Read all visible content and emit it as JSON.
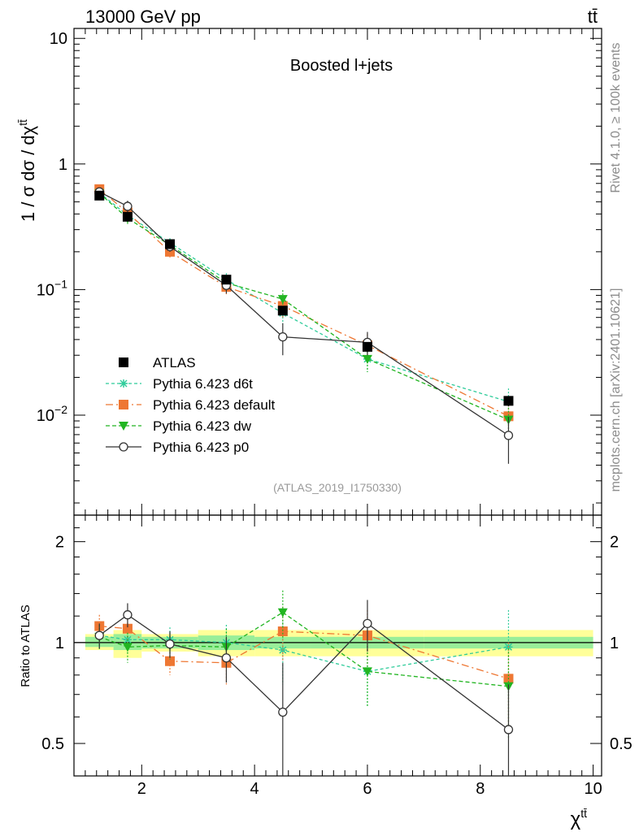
{
  "header": {
    "left": "13000 GeV pp",
    "right": "tt̄"
  },
  "side_labels": {
    "rivet": "Rivet 4.1.0, ≥ 100k events",
    "mcplots": "mcplots.cern.ch [arXiv:2401.10621]"
  },
  "chart_data": {
    "type": "line",
    "title": "Boosted l+jets",
    "analysis_id": "(ATLAS_2019_I1750330)",
    "xlabel": "χ",
    "xlabel_sup": "tt̄",
    "ylabel": "1 / σ dσ / dχ",
    "ylabel_sup": "tt̄",
    "ratio_ylabel": "Ratio to ATLAS",
    "xlim": [
      0.8,
      10.15
    ],
    "ylim": [
      0.0016,
      12.0
    ],
    "yscale": "log",
    "ratio_ylim": [
      0.4,
      2.4
    ],
    "x_ticks": [
      2,
      4,
      6,
      8,
      10
    ],
    "x_tick_labels": [
      "2",
      "4",
      "6",
      "8",
      "10"
    ],
    "y_major_ticks": [
      0.01,
      0.1,
      1,
      10
    ],
    "y_tick_labels": [
      {
        "base": "10",
        "exp": "−2"
      },
      {
        "base": "10",
        "exp": "−1"
      },
      {
        "base": "1",
        "exp": ""
      },
      {
        "base": "10",
        "exp": ""
      }
    ],
    "ratio_ticks": [
      0.5,
      1,
      2
    ],
    "ratio_tick_labels": [
      "0.5",
      "1",
      "2"
    ],
    "bins": [
      [
        1.0,
        1.5
      ],
      [
        1.5,
        2.0
      ],
      [
        2.0,
        3.0
      ],
      [
        3.0,
        4.0
      ],
      [
        4.0,
        5.0
      ],
      [
        5.0,
        7.0
      ],
      [
        7.0,
        10.0
      ]
    ],
    "x": [
      1.25,
      1.75,
      2.5,
      3.5,
      4.5,
      6.0,
      8.5
    ],
    "ratio_band_stat": [
      [
        0.97,
        1.04
      ],
      [
        0.95,
        1.06
      ],
      [
        0.96,
        1.04
      ],
      [
        0.95,
        1.05
      ],
      [
        0.96,
        1.04
      ],
      [
        0.96,
        1.04
      ],
      [
        0.96,
        1.04
      ]
    ],
    "ratio_band_total": [
      [
        0.95,
        1.06
      ],
      [
        0.9,
        1.09
      ],
      [
        0.94,
        1.06
      ],
      [
        0.91,
        1.09
      ],
      [
        0.91,
        1.09
      ],
      [
        0.91,
        1.09
      ],
      [
        0.91,
        1.09
      ]
    ],
    "series": [
      {
        "name": "ATLAS",
        "color": "#000000",
        "marker": "square",
        "dash": "none",
        "values": [
          0.56,
          0.38,
          0.23,
          0.12,
          0.068,
          0.035,
          0.013
        ],
        "err": [
          0.02,
          0.015,
          0.008,
          0.005,
          0.004,
          0.003,
          0.0012
        ],
        "ratio": [
          1,
          1,
          1,
          1,
          1,
          1,
          1
        ],
        "ratio_err": [
          0,
          0,
          0,
          0,
          0,
          0,
          0
        ]
      },
      {
        "name": "Pythia 6.423 d6t",
        "color": "#2ecc9a",
        "marker": "star",
        "dash": "4,3",
        "values": [
          0.59,
          0.39,
          0.236,
          0.12,
          0.065,
          0.028,
          0.0128
        ],
        "err": [
          0.05,
          0.04,
          0.02,
          0.015,
          0.012,
          0.006,
          0.0035
        ],
        "ratio": [
          1.05,
          1.02,
          1.02,
          1.0,
          0.95,
          0.82,
          0.97
        ],
        "ratio_err": [
          0.09,
          0.1,
          0.09,
          0.13,
          0.2,
          0.18,
          0.28
        ]
      },
      {
        "name": "Pythia 6.423 default",
        "color": "#ee7733",
        "marker": "square",
        "dash": "9,4,2,4",
        "values": [
          0.63,
          0.41,
          0.2,
          0.105,
          0.074,
          0.036,
          0.0098
        ],
        "err": [
          0.05,
          0.04,
          0.02,
          0.015,
          0.014,
          0.008,
          0.003
        ],
        "ratio": [
          1.12,
          1.1,
          0.88,
          0.87,
          1.08,
          1.05,
          0.78
        ],
        "ratio_err": [
          0.09,
          0.1,
          0.08,
          0.12,
          0.2,
          0.2,
          0.22
        ]
      },
      {
        "name": "Pythia 6.423 dw",
        "color": "#22b522",
        "marker": "triangle-down",
        "dash": "5,3",
        "values": [
          0.585,
          0.37,
          0.226,
          0.113,
          0.084,
          0.028,
          0.0092
        ],
        "err": [
          0.05,
          0.04,
          0.02,
          0.015,
          0.015,
          0.006,
          0.003
        ],
        "ratio": [
          1.04,
          0.97,
          0.98,
          0.97,
          1.23,
          0.82,
          0.74
        ],
        "ratio_err": [
          0.09,
          0.1,
          0.09,
          0.13,
          0.2,
          0.18,
          0.22
        ]
      },
      {
        "name": "Pythia 6.423 p0",
        "color": "#333333",
        "marker": "circle-open",
        "dash": "none",
        "values": [
          0.6,
          0.46,
          0.22,
          0.108,
          0.042,
          0.038,
          0.0069
        ],
        "err": [
          0.05,
          0.05,
          0.02,
          0.015,
          0.012,
          0.008,
          0.0028
        ],
        "ratio": [
          1.05,
          1.21,
          0.99,
          0.9,
          0.62,
          1.14,
          0.55
        ],
        "ratio_err": [
          0.09,
          0.1,
          0.09,
          0.14,
          0.25,
          0.2,
          0.2
        ]
      }
    ]
  }
}
